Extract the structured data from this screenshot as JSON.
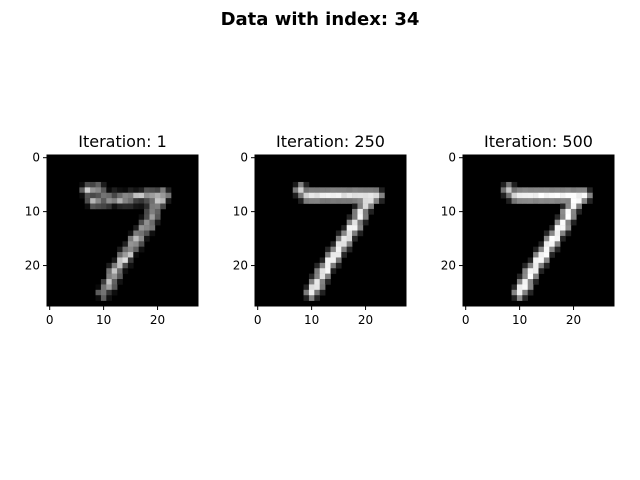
{
  "figure": {
    "suptitle": "Data with index: 34"
  },
  "chart_data": [
    {
      "type": "heatmap",
      "title": "Iteration: 1",
      "colormap": "gray",
      "xticks": [
        "0",
        "10",
        "20"
      ],
      "yticks": [
        "0",
        "10",
        "20"
      ],
      "xlim": [
        -0.5,
        27.5
      ],
      "ylim": [
        27.5,
        -0.5
      ],
      "grid": false,
      "image_size": [
        28,
        28
      ],
      "strokes": [
        {
          "points": [
            [
              7,
              6
            ],
            [
              9,
              6
            ]
          ],
          "value": 0.85
        },
        {
          "points": [
            [
              8,
              8
            ],
            [
              21,
              7
            ]
          ],
          "value": 0.75
        },
        {
          "points": [
            [
              21,
              7
            ],
            [
              17,
              14
            ],
            [
              13,
              20
            ],
            [
              10,
              25
            ]
          ],
          "value": 0.85
        }
      ],
      "noise": 0.45
    },
    {
      "type": "heatmap",
      "title": "Iteration: 250",
      "colormap": "gray",
      "xticks": [
        "0",
        "10",
        "20"
      ],
      "yticks": [
        "0",
        "10",
        "20"
      ],
      "xlim": [
        -0.5,
        27.5
      ],
      "ylim": [
        27.5,
        -0.5
      ],
      "grid": false,
      "image_size": [
        28,
        28
      ],
      "strokes": [
        {
          "points": [
            [
              8,
              6
            ],
            [
              9,
              7
            ]
          ],
          "value": 0.9
        },
        {
          "points": [
            [
              10,
              7
            ],
            [
              22,
              7
            ]
          ],
          "value": 0.95
        },
        {
          "points": [
            [
              21,
              7
            ],
            [
              17,
              14
            ],
            [
              13,
              20
            ],
            [
              10,
              25
            ]
          ],
          "value": 0.97
        }
      ],
      "noise": 0.12
    },
    {
      "type": "heatmap",
      "title": "Iteration: 500",
      "colormap": "gray",
      "xticks": [
        "0",
        "10",
        "20"
      ],
      "yticks": [
        "0",
        "10",
        "20"
      ],
      "xlim": [
        -0.5,
        27.5
      ],
      "ylim": [
        27.5,
        -0.5
      ],
      "grid": false,
      "image_size": [
        28,
        28
      ],
      "strokes": [
        {
          "points": [
            [
              8,
              6
            ],
            [
              9,
              7
            ]
          ],
          "value": 0.85
        },
        {
          "points": [
            [
              10,
              7
            ],
            [
              22,
              7
            ]
          ],
          "value": 1.0
        },
        {
          "points": [
            [
              21,
              7
            ],
            [
              17,
              14
            ],
            [
              13,
              20
            ],
            [
              10,
              25
            ]
          ],
          "value": 1.0
        }
      ],
      "noise": 0.08
    }
  ]
}
